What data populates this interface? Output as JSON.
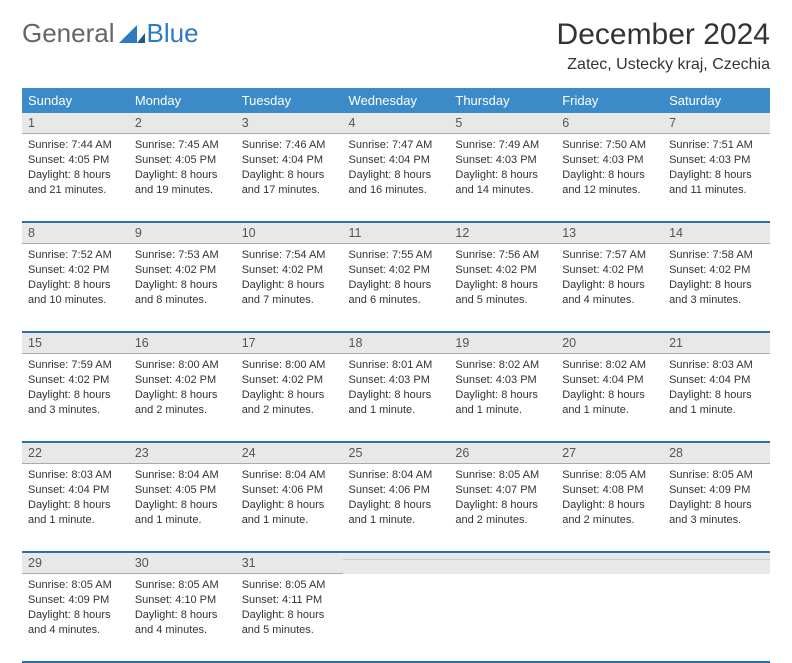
{
  "logo": {
    "text1": "General",
    "text2": "Blue"
  },
  "title": "December 2024",
  "location": "Zatec, Ustecky kraj, Czechia",
  "colors": {
    "header_bg": "#3b8bc9",
    "header_text": "#ffffff",
    "daynum_bg": "#e8e8e8",
    "row_divider": "#2d6fa8",
    "logo_blue": "#2d7bc0"
  },
  "daynames": [
    "Sunday",
    "Monday",
    "Tuesday",
    "Wednesday",
    "Thursday",
    "Friday",
    "Saturday"
  ],
  "weeks": [
    [
      {
        "n": "1",
        "sunrise": "Sunrise: 7:44 AM",
        "sunset": "Sunset: 4:05 PM",
        "day": "Daylight: 8 hours and 21 minutes."
      },
      {
        "n": "2",
        "sunrise": "Sunrise: 7:45 AM",
        "sunset": "Sunset: 4:05 PM",
        "day": "Daylight: 8 hours and 19 minutes."
      },
      {
        "n": "3",
        "sunrise": "Sunrise: 7:46 AM",
        "sunset": "Sunset: 4:04 PM",
        "day": "Daylight: 8 hours and 17 minutes."
      },
      {
        "n": "4",
        "sunrise": "Sunrise: 7:47 AM",
        "sunset": "Sunset: 4:04 PM",
        "day": "Daylight: 8 hours and 16 minutes."
      },
      {
        "n": "5",
        "sunrise": "Sunrise: 7:49 AM",
        "sunset": "Sunset: 4:03 PM",
        "day": "Daylight: 8 hours and 14 minutes."
      },
      {
        "n": "6",
        "sunrise": "Sunrise: 7:50 AM",
        "sunset": "Sunset: 4:03 PM",
        "day": "Daylight: 8 hours and 12 minutes."
      },
      {
        "n": "7",
        "sunrise": "Sunrise: 7:51 AM",
        "sunset": "Sunset: 4:03 PM",
        "day": "Daylight: 8 hours and 11 minutes."
      }
    ],
    [
      {
        "n": "8",
        "sunrise": "Sunrise: 7:52 AM",
        "sunset": "Sunset: 4:02 PM",
        "day": "Daylight: 8 hours and 10 minutes."
      },
      {
        "n": "9",
        "sunrise": "Sunrise: 7:53 AM",
        "sunset": "Sunset: 4:02 PM",
        "day": "Daylight: 8 hours and 8 minutes."
      },
      {
        "n": "10",
        "sunrise": "Sunrise: 7:54 AM",
        "sunset": "Sunset: 4:02 PM",
        "day": "Daylight: 8 hours and 7 minutes."
      },
      {
        "n": "11",
        "sunrise": "Sunrise: 7:55 AM",
        "sunset": "Sunset: 4:02 PM",
        "day": "Daylight: 8 hours and 6 minutes."
      },
      {
        "n": "12",
        "sunrise": "Sunrise: 7:56 AM",
        "sunset": "Sunset: 4:02 PM",
        "day": "Daylight: 8 hours and 5 minutes."
      },
      {
        "n": "13",
        "sunrise": "Sunrise: 7:57 AM",
        "sunset": "Sunset: 4:02 PM",
        "day": "Daylight: 8 hours and 4 minutes."
      },
      {
        "n": "14",
        "sunrise": "Sunrise: 7:58 AM",
        "sunset": "Sunset: 4:02 PM",
        "day": "Daylight: 8 hours and 3 minutes."
      }
    ],
    [
      {
        "n": "15",
        "sunrise": "Sunrise: 7:59 AM",
        "sunset": "Sunset: 4:02 PM",
        "day": "Daylight: 8 hours and 3 minutes."
      },
      {
        "n": "16",
        "sunrise": "Sunrise: 8:00 AM",
        "sunset": "Sunset: 4:02 PM",
        "day": "Daylight: 8 hours and 2 minutes."
      },
      {
        "n": "17",
        "sunrise": "Sunrise: 8:00 AM",
        "sunset": "Sunset: 4:02 PM",
        "day": "Daylight: 8 hours and 2 minutes."
      },
      {
        "n": "18",
        "sunrise": "Sunrise: 8:01 AM",
        "sunset": "Sunset: 4:03 PM",
        "day": "Daylight: 8 hours and 1 minute."
      },
      {
        "n": "19",
        "sunrise": "Sunrise: 8:02 AM",
        "sunset": "Sunset: 4:03 PM",
        "day": "Daylight: 8 hours and 1 minute."
      },
      {
        "n": "20",
        "sunrise": "Sunrise: 8:02 AM",
        "sunset": "Sunset: 4:04 PM",
        "day": "Daylight: 8 hours and 1 minute."
      },
      {
        "n": "21",
        "sunrise": "Sunrise: 8:03 AM",
        "sunset": "Sunset: 4:04 PM",
        "day": "Daylight: 8 hours and 1 minute."
      }
    ],
    [
      {
        "n": "22",
        "sunrise": "Sunrise: 8:03 AM",
        "sunset": "Sunset: 4:04 PM",
        "day": "Daylight: 8 hours and 1 minute."
      },
      {
        "n": "23",
        "sunrise": "Sunrise: 8:04 AM",
        "sunset": "Sunset: 4:05 PM",
        "day": "Daylight: 8 hours and 1 minute."
      },
      {
        "n": "24",
        "sunrise": "Sunrise: 8:04 AM",
        "sunset": "Sunset: 4:06 PM",
        "day": "Daylight: 8 hours and 1 minute."
      },
      {
        "n": "25",
        "sunrise": "Sunrise: 8:04 AM",
        "sunset": "Sunset: 4:06 PM",
        "day": "Daylight: 8 hours and 1 minute."
      },
      {
        "n": "26",
        "sunrise": "Sunrise: 8:05 AM",
        "sunset": "Sunset: 4:07 PM",
        "day": "Daylight: 8 hours and 2 minutes."
      },
      {
        "n": "27",
        "sunrise": "Sunrise: 8:05 AM",
        "sunset": "Sunset: 4:08 PM",
        "day": "Daylight: 8 hours and 2 minutes."
      },
      {
        "n": "28",
        "sunrise": "Sunrise: 8:05 AM",
        "sunset": "Sunset: 4:09 PM",
        "day": "Daylight: 8 hours and 3 minutes."
      }
    ],
    [
      {
        "n": "29",
        "sunrise": "Sunrise: 8:05 AM",
        "sunset": "Sunset: 4:09 PM",
        "day": "Daylight: 8 hours and 4 minutes."
      },
      {
        "n": "30",
        "sunrise": "Sunrise: 8:05 AM",
        "sunset": "Sunset: 4:10 PM",
        "day": "Daylight: 8 hours and 4 minutes."
      },
      {
        "n": "31",
        "sunrise": "Sunrise: 8:05 AM",
        "sunset": "Sunset: 4:11 PM",
        "day": "Daylight: 8 hours and 5 minutes."
      },
      null,
      null,
      null,
      null
    ]
  ]
}
